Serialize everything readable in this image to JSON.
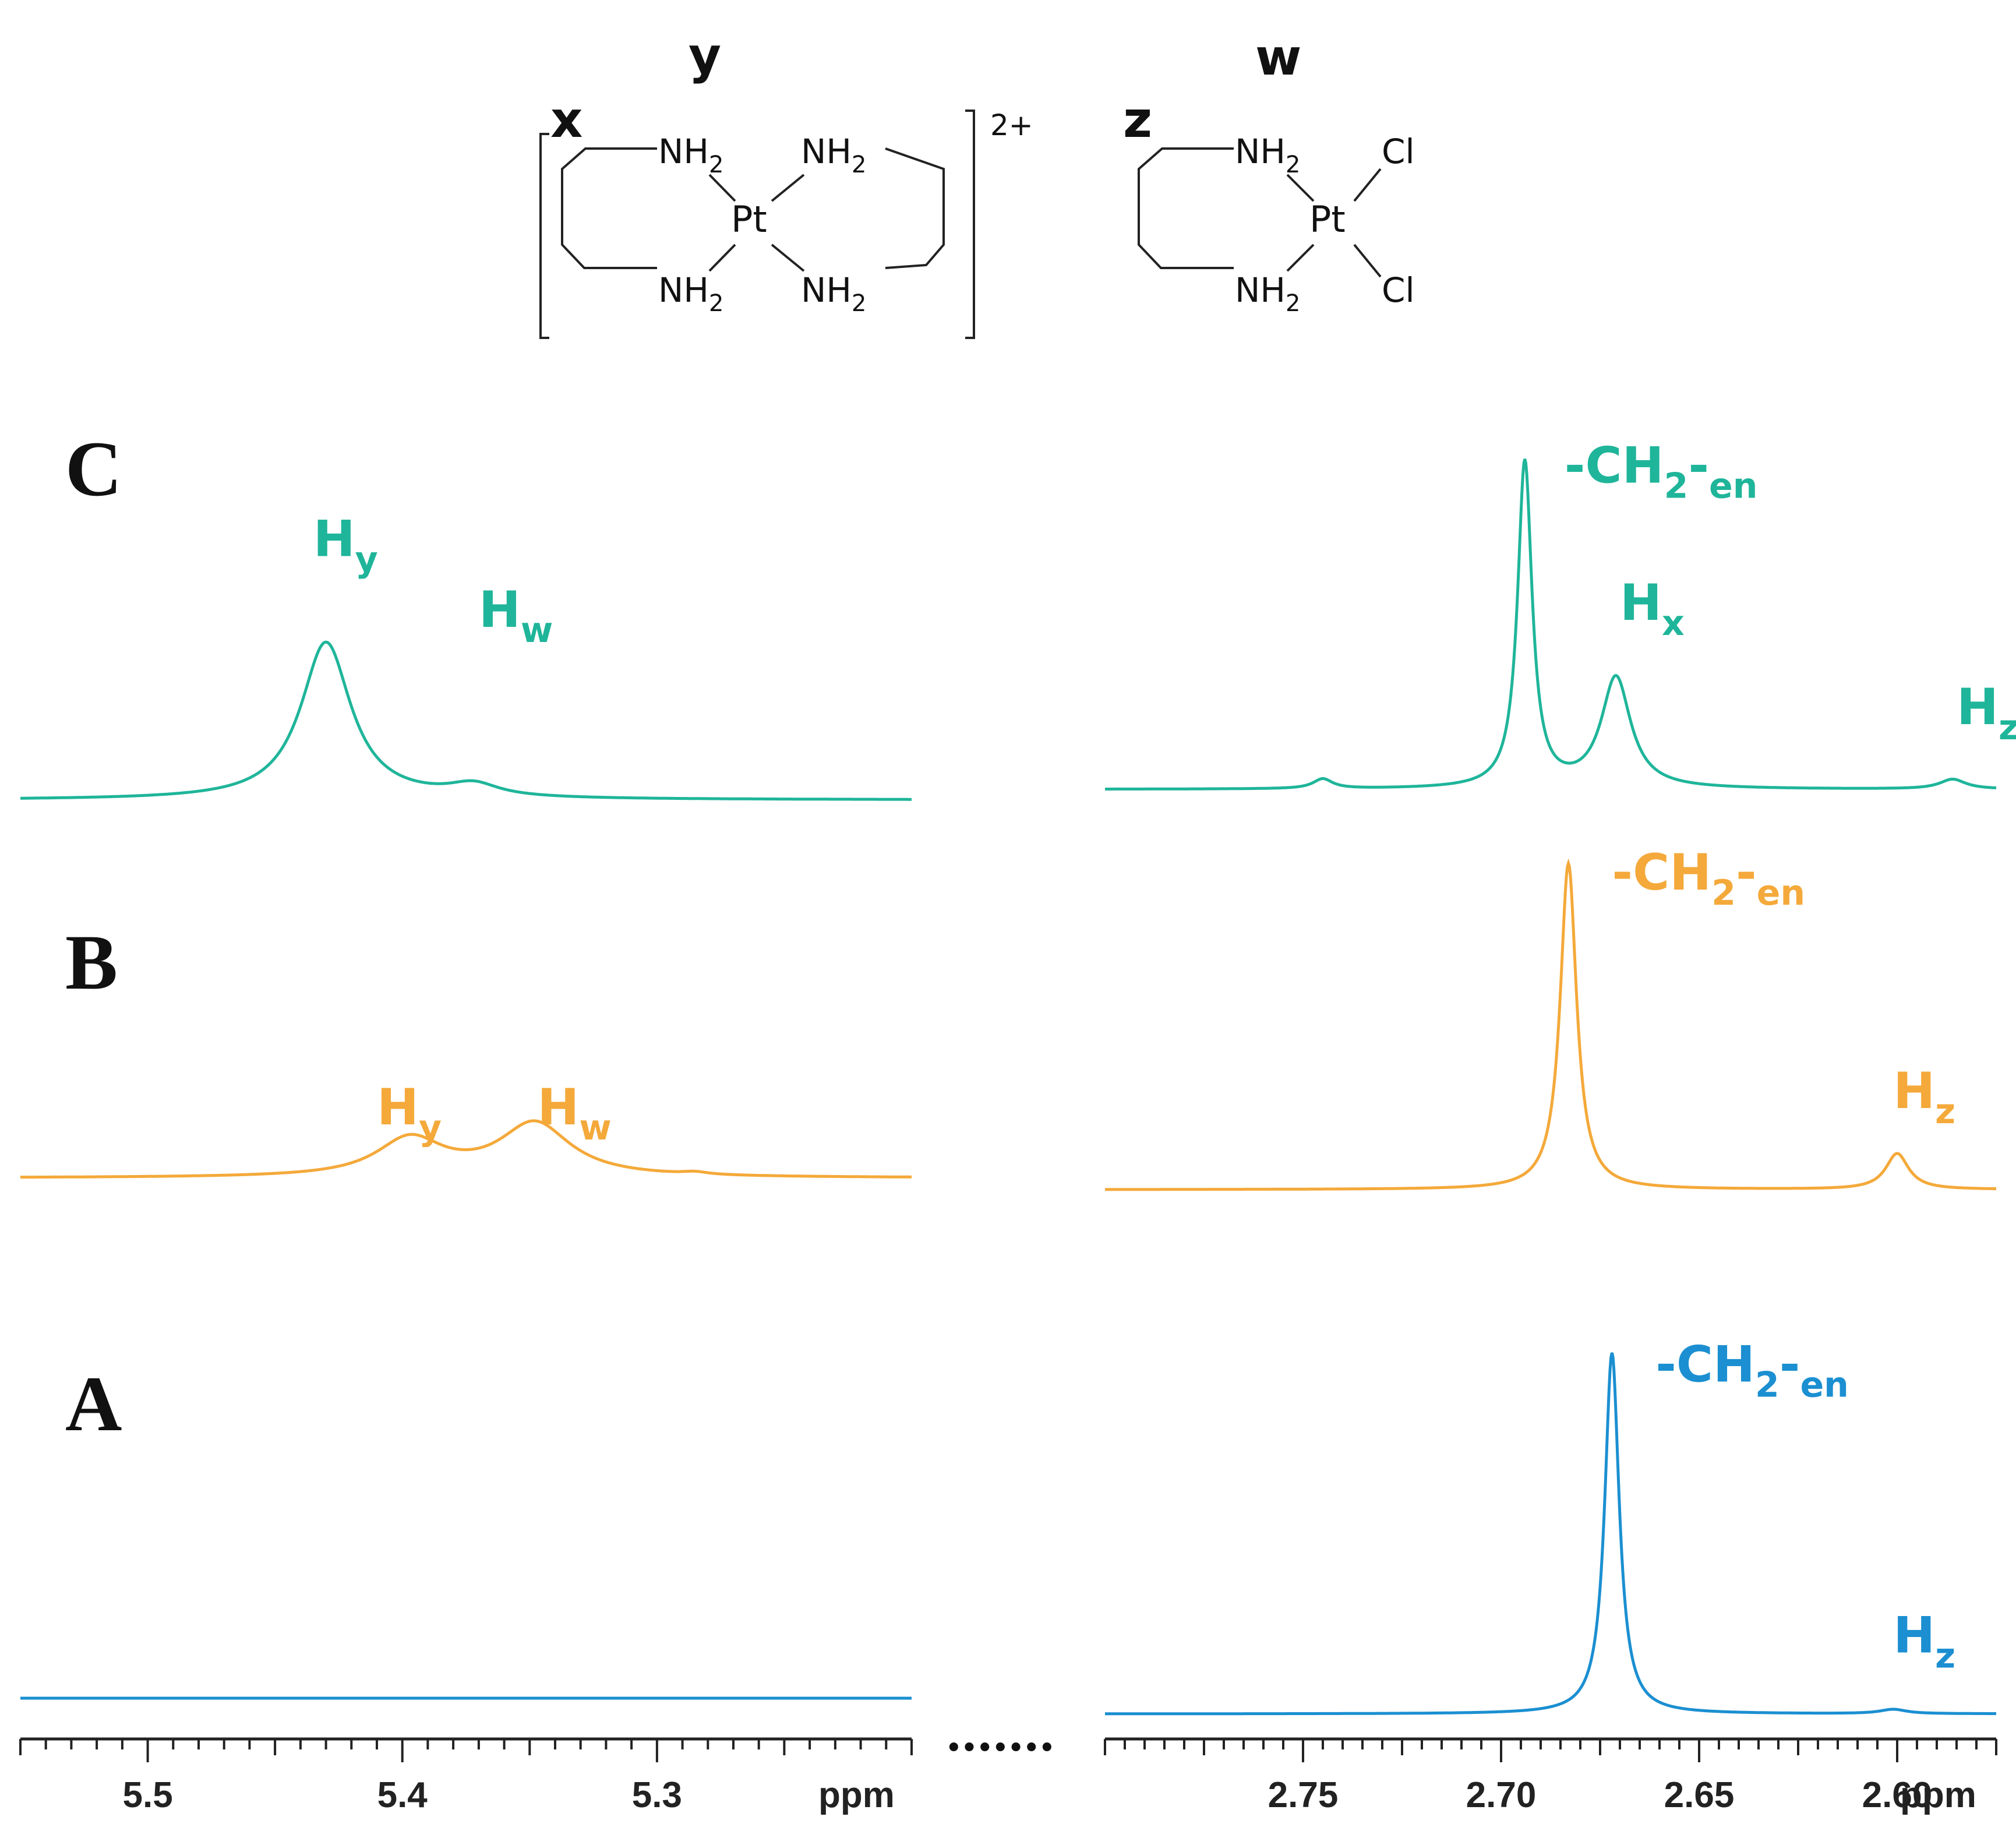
{
  "structures": {
    "complex1": {
      "labels": [
        "x",
        "y"
      ],
      "groups": [
        "NH",
        "2"
      ],
      "metal": "Pt",
      "charge": "2+"
    },
    "complex2": {
      "labels": [
        "z",
        "w"
      ],
      "groups": [
        "NH",
        "2"
      ],
      "metal": "Pt",
      "halide": "Cl"
    }
  },
  "colors": {
    "C": "#1fb59a",
    "B": "#f4a93a",
    "A": "#1b8fd1",
    "axis": "#222222"
  },
  "axes": {
    "left": {
      "range": [
        5.55,
        5.2
      ],
      "ticks": [
        5.5,
        5.4,
        5.3
      ],
      "tick_labels": [
        "5.5",
        "5.4",
        "5.3"
      ],
      "unit": "ppm"
    },
    "right": {
      "range": [
        2.8,
        2.575
      ],
      "ticks": [
        2.75,
        2.7,
        2.65,
        2.6
      ],
      "tick_labels": [
        "2.75",
        "2.70",
        "2.65",
        "2.60"
      ],
      "unit": "ppm"
    },
    "break": "•••••••"
  },
  "chart_data": {
    "type": "line",
    "title": "",
    "xlabel": "ppm",
    "ylabel": "",
    "spectra": [
      {
        "name": "C",
        "color": "#1fb59a",
        "left_peaks": [
          {
            "ppm": 5.43,
            "height": 1.0,
            "width": 0.012
          },
          {
            "ppm": 5.372,
            "height": 0.08,
            "width": 0.012
          }
        ],
        "right_peaks": [
          {
            "ppm": 2.694,
            "height": 1.0,
            "width": 0.0022
          },
          {
            "ppm": 2.671,
            "height": 0.34,
            "width": 0.0045
          },
          {
            "ppm": 2.745,
            "height": 0.03,
            "width": 0.003
          },
          {
            "ppm": 2.586,
            "height": 0.03,
            "width": 0.004
          }
        ],
        "labels": [
          {
            "main": "H",
            "sub": "y",
            "ppm": 5.435,
            "panel": "left",
            "level": 1.55
          },
          {
            "main": "H",
            "sub": "w",
            "ppm": 5.37,
            "panel": "left",
            "level": 1.1
          },
          {
            "main": "-CH",
            "sub": "2",
            "suffix": "-",
            "sub2": "en",
            "ppm": 2.684,
            "panel": "right",
            "level": 0.94
          },
          {
            "main": "H",
            "sub": "x",
            "ppm": 2.67,
            "panel": "right",
            "level": 0.52
          },
          {
            "main": "H",
            "sub": "z",
            "ppm": 2.585,
            "panel": "right",
            "level": 0.2
          }
        ]
      },
      {
        "name": "B",
        "color": "#f4a93a",
        "left_peaks": [
          {
            "ppm": 5.397,
            "height": 0.24,
            "width": 0.016
          },
          {
            "ppm": 5.348,
            "height": 0.34,
            "width": 0.017
          },
          {
            "ppm": 5.285,
            "height": 0.015,
            "width": 0.006
          }
        ],
        "right_peaks": [
          {
            "ppm": 2.683,
            "height": 1.0,
            "width": 0.0025
          },
          {
            "ppm": 2.6,
            "height": 0.11,
            "width": 0.0035
          }
        ],
        "labels": [
          {
            "main": "H",
            "sub": "y",
            "ppm": 5.41,
            "panel": "left",
            "level": 0.34
          },
          {
            "main": "H",
            "sub": "w",
            "ppm": 5.347,
            "panel": "left",
            "level": 0.34
          },
          {
            "main": "-CH",
            "sub": "2",
            "suffix": "-",
            "sub2": "en",
            "ppm": 2.672,
            "panel": "right",
            "level": 0.92
          },
          {
            "main": "H",
            "sub": "z",
            "ppm": 2.601,
            "panel": "right",
            "level": 0.25
          }
        ]
      },
      {
        "name": "A",
        "color": "#1b8fd1",
        "left_peaks": [],
        "right_peaks": [
          {
            "ppm": 2.672,
            "height": 1.0,
            "width": 0.0022
          },
          {
            "ppm": 2.601,
            "height": 0.012,
            "width": 0.004
          }
        ],
        "labels": [
          {
            "main": "-CH",
            "sub": "2",
            "suffix": "-",
            "sub2": "en",
            "ppm": 2.661,
            "panel": "right",
            "level": 0.92
          },
          {
            "main": "H",
            "sub": "z",
            "ppm": 2.601,
            "panel": "right",
            "level": 0.17
          }
        ]
      }
    ]
  }
}
